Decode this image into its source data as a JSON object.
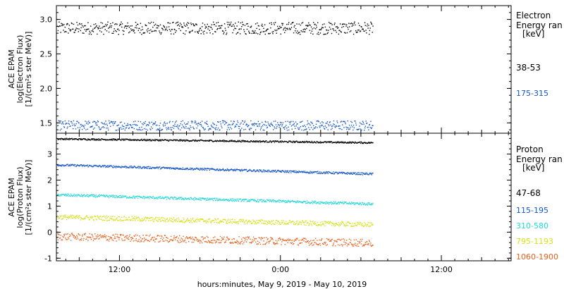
{
  "xaxis": {
    "title": "hours:minutes, May  9, 2019 - May 10, 2019",
    "ticks": [
      {
        "hour": 12,
        "label": "12:00"
      },
      {
        "hour": 24,
        "label": "0:00"
      },
      {
        "hour": 36,
        "label": "12:00"
      }
    ],
    "range_hours": [
      7.3,
      41.2
    ],
    "data_end_hour": 30.9
  },
  "chart_data": [
    {
      "type": "scatter",
      "panel": "electron",
      "ylabel": [
        "ACE EPAM",
        "log(Electron Flux)",
        "[1/(cm²s ster MeV)]"
      ],
      "ylim": [
        1.35,
        3.2
      ],
      "yticks": [
        "1.5",
        "2.0",
        "2.5",
        "3.0"
      ],
      "legend_title": [
        "Electron",
        "Energy ran",
        "[keV]"
      ],
      "series": [
        {
          "name": "38-53",
          "color": "#000000",
          "mean": [
            2.88,
            2.88
          ],
          "spread": 0.09
        },
        {
          "name": "175-315",
          "color": "#1556c8",
          "mean": [
            1.47,
            1.47
          ],
          "spread": 0.07
        }
      ]
    },
    {
      "type": "scatter",
      "panel": "proton",
      "ylabel": [
        "ACE EPAM",
        "log(Proton Flux)",
        "[1/(cm²s ster MeV)]"
      ],
      "ylim": [
        -1.1,
        3.8
      ],
      "yticks": [
        "-1",
        "0",
        "1",
        "2",
        "3"
      ],
      "legend_title": [
        "Proton",
        "Energy ran",
        "[keV]"
      ],
      "series": [
        {
          "name": "47-68",
          "color": "#000000",
          "mean": [
            3.6,
            3.45
          ],
          "spread": 0.03
        },
        {
          "name": "115-195",
          "color": "#1556c8",
          "mean": [
            2.6,
            2.25
          ],
          "spread": 0.04
        },
        {
          "name": "310-580",
          "color": "#22d8d8",
          "mean": [
            1.45,
            1.1
          ],
          "spread": 0.05
        },
        {
          "name": "795-1193",
          "color": "#d6e21a",
          "mean": [
            0.6,
            0.3
          ],
          "spread": 0.09
        },
        {
          "name": "1060-1900",
          "color": "#e8601c",
          "mean": [
            -0.15,
            -0.4
          ],
          "spread": 0.14
        }
      ]
    }
  ]
}
